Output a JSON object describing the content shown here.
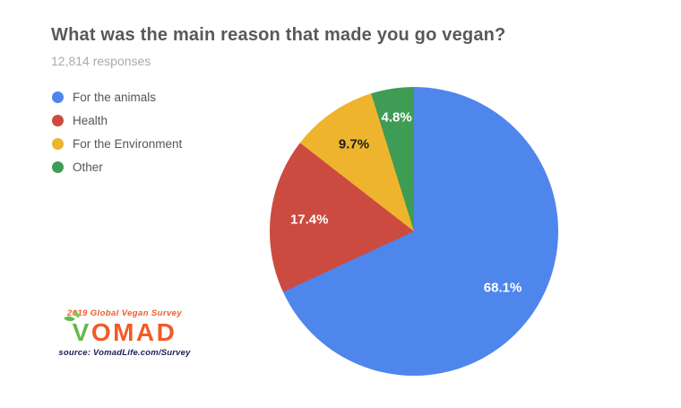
{
  "header": {
    "title": "What was the main reason that made you go vegan?",
    "subtitle": "12,814 responses"
  },
  "chart_data": {
    "type": "pie",
    "title": "What was the main reason that made you go vegan?",
    "subtitle": "12,814 responses",
    "total_responses": "12,814",
    "legend_position": "top-left",
    "start_angle_deg": 0,
    "direction": "clockwise",
    "slices": [
      {
        "label": "For the animals",
        "value": 68.1,
        "percent_label": "68.1%",
        "color": "#4E86EC",
        "label_color": "#FFFFFF"
      },
      {
        "label": "Health",
        "value": 17.4,
        "percent_label": "17.4%",
        "color": "#CC4B40",
        "label_color": "#FFFFFF"
      },
      {
        "label": "For the Environment",
        "value": 9.7,
        "percent_label": "9.7%",
        "color": "#EFB42D",
        "label_color": "#1E1E1E"
      },
      {
        "label": "Other",
        "value": 4.8,
        "percent_label": "4.8%",
        "color": "#3F9C55",
        "label_color": "#FFFFFF"
      }
    ]
  },
  "logo": {
    "tagline": "2019 Global Vegan Survey",
    "wordmark_v": "V",
    "wordmark_rest": "OMAD",
    "source": "source: VomadLife.com/Survey",
    "orange": "#F15B28",
    "green": "#62BA46",
    "navy": "#1B1E5A"
  }
}
